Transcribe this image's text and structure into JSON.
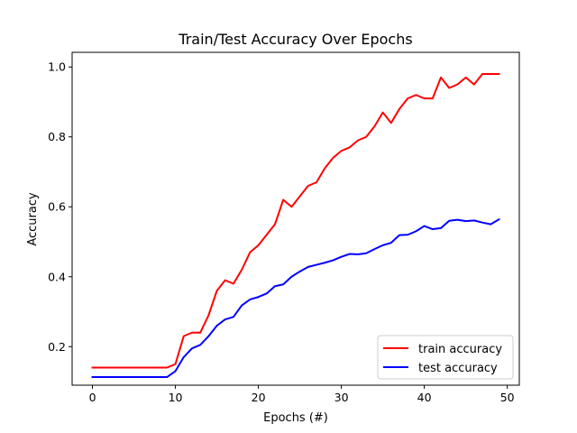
{
  "chart_data": {
    "type": "line",
    "title": "Train/Test Accuracy Over Epochs",
    "xlabel": "Epochs (#)",
    "ylabel": "Accuracy",
    "xlim": [
      -2.45,
      51.45
    ],
    "ylim": [
      0.0897,
      1.0419
    ],
    "xticks": [
      0,
      10,
      20,
      30,
      40,
      50
    ],
    "yticks": [
      0.2,
      0.4,
      0.6,
      0.8,
      1.0
    ],
    "xtick_labels": [
      "0",
      "10",
      "20",
      "30",
      "40",
      "50"
    ],
    "ytick_labels": [
      "0.2",
      "0.4",
      "0.6",
      "0.8",
      "1.0"
    ],
    "grid": false,
    "legend_position": "lower-right",
    "x": [
      0,
      1,
      2,
      3,
      4,
      5,
      6,
      7,
      8,
      9,
      10,
      11,
      12,
      13,
      14,
      15,
      16,
      17,
      18,
      19,
      20,
      21,
      22,
      23,
      24,
      25,
      26,
      27,
      28,
      29,
      30,
      31,
      32,
      33,
      34,
      35,
      36,
      37,
      38,
      39,
      40,
      41,
      42,
      43,
      44,
      45,
      46,
      47,
      48,
      49
    ],
    "series": [
      {
        "name": "train accuracy",
        "color": "#ff0000",
        "values": [
          0.14,
          0.14,
          0.14,
          0.14,
          0.14,
          0.14,
          0.14,
          0.14,
          0.14,
          0.14,
          0.15,
          0.23,
          0.24,
          0.24,
          0.29,
          0.36,
          0.39,
          0.38,
          0.42,
          0.47,
          0.49,
          0.52,
          0.55,
          0.62,
          0.6,
          0.63,
          0.66,
          0.67,
          0.71,
          0.74,
          0.76,
          0.77,
          0.79,
          0.8,
          0.83,
          0.87,
          0.84,
          0.88,
          0.91,
          0.92,
          0.91,
          0.91,
          0.97,
          0.94,
          0.95,
          0.97,
          0.95,
          0.98,
          0.98,
          0.98
        ]
      },
      {
        "name": "test accuracy",
        "color": "#0000ff",
        "values": [
          0.113,
          0.113,
          0.113,
          0.113,
          0.113,
          0.113,
          0.113,
          0.113,
          0.113,
          0.113,
          0.13,
          0.17,
          0.195,
          0.205,
          0.23,
          0.26,
          0.278,
          0.285,
          0.318,
          0.335,
          0.342,
          0.352,
          0.373,
          0.378,
          0.4,
          0.415,
          0.428,
          0.434,
          0.44,
          0.447,
          0.457,
          0.465,
          0.464,
          0.467,
          0.479,
          0.49,
          0.497,
          0.519,
          0.52,
          0.53,
          0.545,
          0.536,
          0.539,
          0.56,
          0.563,
          0.559,
          0.561,
          0.555,
          0.55,
          0.564
        ]
      }
    ]
  }
}
